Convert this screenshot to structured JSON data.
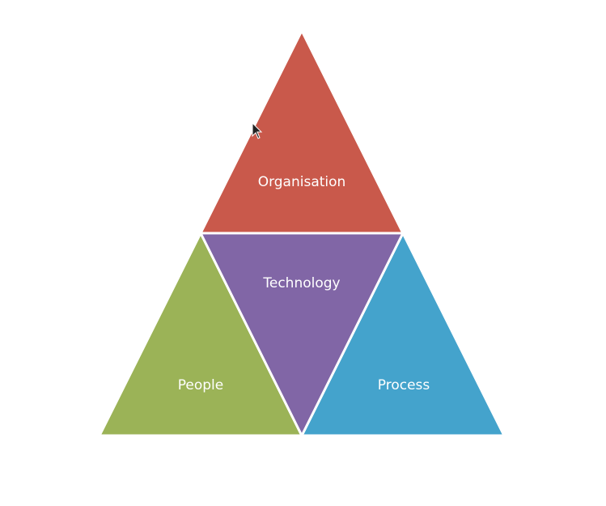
{
  "diagram": {
    "segments": {
      "top": {
        "label": "Organisation",
        "color": "#C9594B"
      },
      "middle": {
        "label": "Technology",
        "color": "#8166A6"
      },
      "left": {
        "label": "People",
        "color": "#9BB357"
      },
      "right": {
        "label": "Process",
        "color": "#44A3CC"
      }
    }
  },
  "cursor": {
    "icon": "mouse-pointer-icon",
    "color": "#222222"
  }
}
